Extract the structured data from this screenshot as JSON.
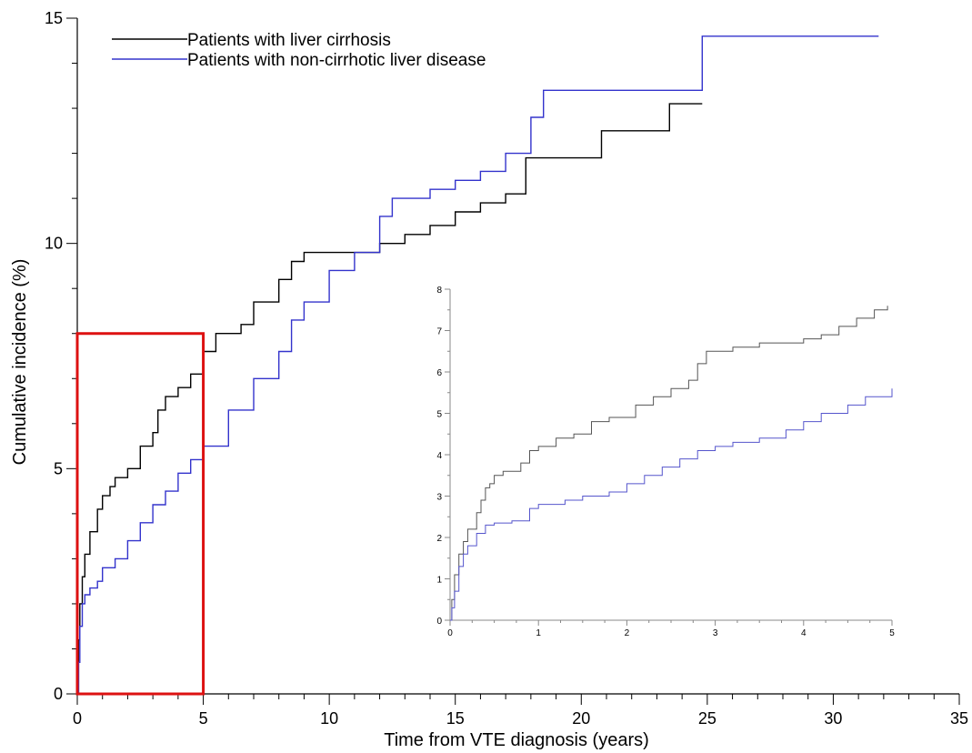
{
  "chart_data": [
    {
      "type": "line",
      "xlabel": "Time from VTE diagnosis (years)",
      "ylabel": "Cumulative incidence (%)",
      "xlim": [
        0,
        35
      ],
      "ylim": [
        0,
        15
      ],
      "x_ticks": [
        0,
        5,
        10,
        15,
        20,
        25,
        30,
        35
      ],
      "y_ticks": [
        0,
        5,
        10,
        15
      ],
      "grid": false,
      "legend": "top-left",
      "series": [
        {
          "name": "Patients with liver cirrhosis",
          "color": "#000000",
          "points": [
            [
              0,
              0
            ],
            [
              0.05,
              1.2
            ],
            [
              0.1,
              2.0
            ],
            [
              0.2,
              2.6
            ],
            [
              0.3,
              3.1
            ],
            [
              0.5,
              3.6
            ],
            [
              0.8,
              4.1
            ],
            [
              1.0,
              4.4
            ],
            [
              1.3,
              4.6
            ],
            [
              1.5,
              4.8
            ],
            [
              2.0,
              5.0
            ],
            [
              2.5,
              5.5
            ],
            [
              3.0,
              5.8
            ],
            [
              3.2,
              6.3
            ],
            [
              3.5,
              6.6
            ],
            [
              4.0,
              6.8
            ],
            [
              4.5,
              7.1
            ],
            [
              5.0,
              7.6
            ],
            [
              5.5,
              8.0
            ],
            [
              6.5,
              8.2
            ],
            [
              7.0,
              8.7
            ],
            [
              8.0,
              9.2
            ],
            [
              8.5,
              9.6
            ],
            [
              9.0,
              9.8
            ],
            [
              12.0,
              10.0
            ],
            [
              13.0,
              10.2
            ],
            [
              14.0,
              10.4
            ],
            [
              15.0,
              10.7
            ],
            [
              16.0,
              10.9
            ],
            [
              17.0,
              11.1
            ],
            [
              17.8,
              11.9
            ],
            [
              20.8,
              12.5
            ],
            [
              23.5,
              13.1
            ],
            [
              24.8,
              13.1
            ]
          ]
        },
        {
          "name": "Patients with non-cirrhotic liver disease",
          "color": "#3333cc",
          "points": [
            [
              0,
              0
            ],
            [
              0.05,
              0.7
            ],
            [
              0.1,
              1.5
            ],
            [
              0.2,
              2.0
            ],
            [
              0.3,
              2.2
            ],
            [
              0.5,
              2.35
            ],
            [
              0.8,
              2.5
            ],
            [
              1.0,
              2.8
            ],
            [
              1.5,
              3.0
            ],
            [
              2.0,
              3.4
            ],
            [
              2.5,
              3.8
            ],
            [
              3.0,
              4.2
            ],
            [
              3.5,
              4.5
            ],
            [
              4.0,
              4.9
            ],
            [
              4.5,
              5.2
            ],
            [
              5.0,
              5.5
            ],
            [
              6.0,
              6.3
            ],
            [
              7.0,
              7.0
            ],
            [
              8.0,
              7.6
            ],
            [
              8.5,
              8.3
            ],
            [
              9.0,
              8.7
            ],
            [
              10.0,
              9.4
            ],
            [
              11.0,
              9.8
            ],
            [
              12.0,
              10.6
            ],
            [
              12.5,
              11.0
            ],
            [
              14.0,
              11.2
            ],
            [
              15.0,
              11.4
            ],
            [
              16.0,
              11.6
            ],
            [
              17.0,
              12.0
            ],
            [
              18.0,
              12.8
            ],
            [
              18.5,
              13.4
            ],
            [
              24.8,
              13.4
            ],
            [
              24.8,
              14.6
            ],
            [
              31.8,
              14.6
            ]
          ]
        }
      ],
      "highlight_box": {
        "x_range": [
          0,
          5
        ],
        "y_range": [
          0,
          8
        ],
        "color": "#dd1111"
      }
    },
    {
      "type": "line",
      "xlabel": "",
      "ylabel": "",
      "xlim": [
        0,
        5
      ],
      "ylim": [
        0,
        8
      ],
      "x_ticks": [
        0,
        1,
        2,
        3,
        4,
        5
      ],
      "y_ticks": [
        0,
        1,
        2,
        3,
        4,
        5,
        6,
        7,
        8
      ],
      "grid": false,
      "series": [
        {
          "color": "#555555",
          "points": [
            [
              0,
              0
            ],
            [
              0.02,
              0.5
            ],
            [
              0.05,
              1.1
            ],
            [
              0.1,
              1.6
            ],
            [
              0.15,
              1.9
            ],
            [
              0.2,
              2.2
            ],
            [
              0.3,
              2.6
            ],
            [
              0.35,
              2.9
            ],
            [
              0.4,
              3.2
            ],
            [
              0.45,
              3.3
            ],
            [
              0.5,
              3.5
            ],
            [
              0.6,
              3.6
            ],
            [
              0.8,
              3.8
            ],
            [
              0.9,
              4.1
            ],
            [
              1.0,
              4.2
            ],
            [
              1.2,
              4.4
            ],
            [
              1.4,
              4.5
            ],
            [
              1.6,
              4.8
            ],
            [
              1.8,
              4.9
            ],
            [
              2.0,
              4.9
            ],
            [
              2.1,
              5.2
            ],
            [
              2.3,
              5.4
            ],
            [
              2.5,
              5.6
            ],
            [
              2.7,
              5.8
            ],
            [
              2.8,
              6.2
            ],
            [
              2.9,
              6.5
            ],
            [
              3.2,
              6.6
            ],
            [
              3.5,
              6.7
            ],
            [
              4.0,
              6.8
            ],
            [
              4.2,
              6.9
            ],
            [
              4.4,
              7.1
            ],
            [
              4.6,
              7.3
            ],
            [
              4.8,
              7.5
            ],
            [
              4.95,
              7.6
            ]
          ]
        },
        {
          "color": "#5555cc",
          "points": [
            [
              0,
              0
            ],
            [
              0.02,
              0.3
            ],
            [
              0.05,
              0.7
            ],
            [
              0.1,
              1.3
            ],
            [
              0.15,
              1.6
            ],
            [
              0.2,
              1.8
            ],
            [
              0.3,
              2.1
            ],
            [
              0.4,
              2.3
            ],
            [
              0.5,
              2.35
            ],
            [
              0.7,
              2.4
            ],
            [
              0.9,
              2.7
            ],
            [
              1.0,
              2.8
            ],
            [
              1.3,
              2.9
            ],
            [
              1.5,
              3.0
            ],
            [
              1.8,
              3.1
            ],
            [
              2.0,
              3.3
            ],
            [
              2.2,
              3.5
            ],
            [
              2.4,
              3.7
            ],
            [
              2.6,
              3.9
            ],
            [
              2.8,
              4.1
            ],
            [
              3.0,
              4.2
            ],
            [
              3.2,
              4.3
            ],
            [
              3.5,
              4.4
            ],
            [
              3.8,
              4.6
            ],
            [
              4.0,
              4.8
            ],
            [
              4.2,
              5.0
            ],
            [
              4.5,
              5.2
            ],
            [
              4.7,
              5.4
            ],
            [
              5.0,
              5.6
            ]
          ]
        }
      ]
    }
  ]
}
